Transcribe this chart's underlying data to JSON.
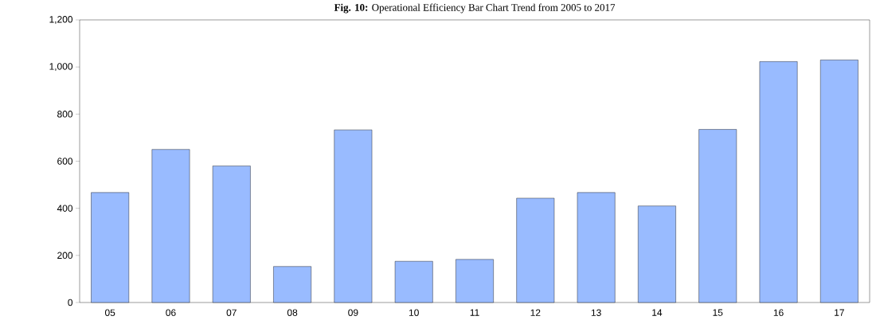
{
  "chart_data": {
    "type": "bar",
    "title": "**Fig. 10:** Operational Efficiency Bar Chart Trend from 2005 to 2017",
    "categories": [
      "05",
      "06",
      "07",
      "08",
      "09",
      "10",
      "11",
      "12",
      "13",
      "14",
      "15",
      "16",
      "17"
    ],
    "values": [
      467,
      650,
      580,
      153,
      733,
      175,
      183,
      443,
      467,
      410,
      735,
      1023,
      1030
    ],
    "color": "#99bbff",
    "ylim": [
      0,
      1200
    ],
    "yticks": [
      {
        "value": 0,
        "label": "0"
      },
      {
        "value": 200,
        "label": "200"
      },
      {
        "value": 400,
        "label": "400"
      },
      {
        "value": 600,
        "label": "600"
      },
      {
        "value": 800,
        "label": "800"
      },
      {
        "value": 1000,
        "label": "1,000"
      },
      {
        "value": 1200,
        "label": "1,200"
      }
    ],
    "grid": false
  }
}
